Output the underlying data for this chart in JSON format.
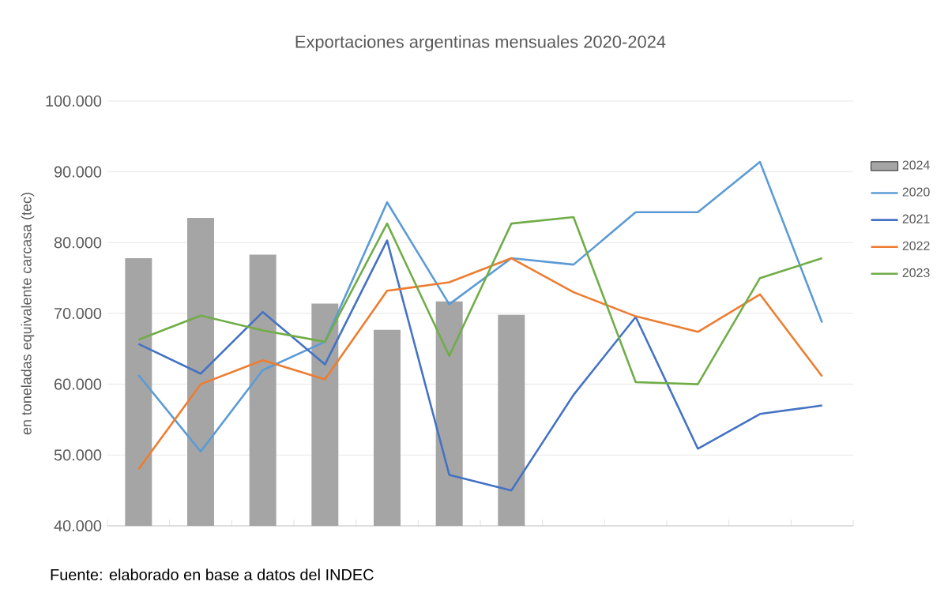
{
  "chart_data": {
    "type": "line",
    "title": "Exportaciones argentinas mensuales 2020-2024",
    "ylabel": "en toneladas equivalente carcasa (tec)",
    "categories": [
      null,
      null,
      null,
      null,
      null,
      null,
      null,
      null,
      null,
      null,
      null,
      null
    ],
    "series": [
      {
        "name": "2024",
        "type": "bar",
        "color": "#a5a5a5",
        "values": [
          77800,
          83500,
          78300,
          71400,
          67700,
          71700,
          69800,
          null,
          null,
          null,
          null,
          null
        ]
      },
      {
        "name": "2020",
        "color": "#5b9bd5",
        "values": [
          61300,
          50500,
          62000,
          66000,
          85700,
          71300,
          77800,
          76900,
          84300,
          84300,
          91400,
          68700
        ]
      },
      {
        "name": "2021",
        "color": "#4472c4",
        "values": [
          65700,
          61500,
          70200,
          62800,
          80300,
          47200,
          45000,
          58500,
          69500,
          50900,
          55800,
          57000
        ]
      },
      {
        "name": "2022",
        "color": "#ed7d31",
        "values": [
          48000,
          60000,
          63400,
          60700,
          73200,
          74400,
          77800,
          73000,
          69600,
          67400,
          72700,
          61100
        ]
      },
      {
        "name": "2023",
        "color": "#70ad47",
        "values": [
          66300,
          69700,
          67600,
          66000,
          82700,
          64000,
          82700,
          83600,
          60300,
          60000,
          75000,
          77800
        ]
      }
    ],
    "ylim": [
      40000,
      100000
    ],
    "yticks": [
      {
        "value": 40000,
        "label": "40.000"
      },
      {
        "value": 50000,
        "label": "50.000"
      },
      {
        "value": 60000,
        "label": "60.000"
      },
      {
        "value": 70000,
        "label": "70.000"
      },
      {
        "value": 80000,
        "label": "80.000"
      },
      {
        "value": 90000,
        "label": "90.000"
      },
      {
        "value": 100000,
        "label": "100.000"
      }
    ],
    "grid": "y",
    "legend": "right",
    "tick_labels": "y",
    "annotations": [
      "Fuente: elaborado en base a datos del INDEC"
    ]
  }
}
